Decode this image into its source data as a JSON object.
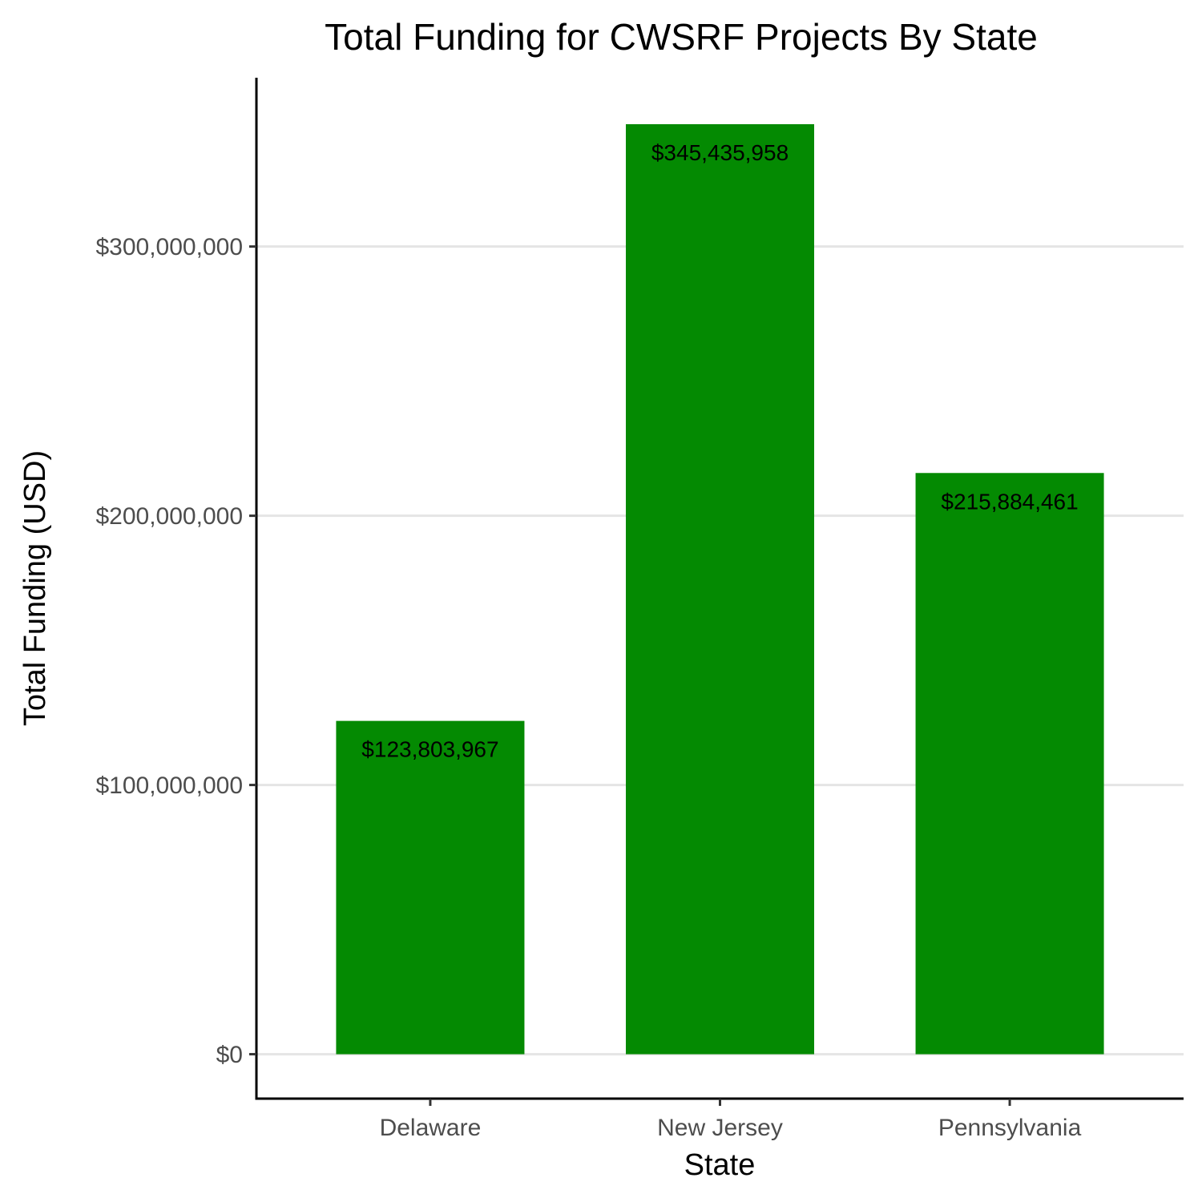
{
  "colors": {
    "bar": "#048a02",
    "grid": "#e5e5e5",
    "axis": "#000000",
    "tick_text": "#4d4d4d"
  },
  "chart_data": {
    "type": "bar",
    "title": "Total Funding for CWSRF Projects By State",
    "xlabel": "State",
    "ylabel": "Total Funding (USD)",
    "categories": [
      "Delaware",
      "New Jersey",
      "Pennsylvania"
    ],
    "values": [
      123803967,
      345435958,
      215884461
    ],
    "data_labels": [
      "$123,803,967",
      "$345,435,958",
      "$215,884,461"
    ],
    "yticks": [
      0,
      100000000,
      200000000,
      300000000
    ],
    "ytick_labels": [
      "$0",
      "$100,000,000",
      "$200,000,000",
      "$300,000,000"
    ],
    "ylim": [
      -16500000,
      362700000
    ],
    "grid": "horizontal major",
    "legend": "none"
  }
}
